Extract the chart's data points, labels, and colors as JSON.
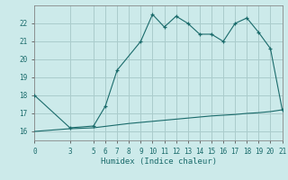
{
  "title": "",
  "xlabel": "Humidex (Indice chaleur)",
  "bg_color": "#cceaea",
  "grid_color": "#aacccc",
  "line_color": "#1a6b6b",
  "xlim": [
    0,
    21
  ],
  "ylim": [
    15.5,
    23.0
  ],
  "xticks": [
    0,
    3,
    5,
    6,
    7,
    8,
    9,
    10,
    11,
    12,
    13,
    14,
    15,
    16,
    17,
    18,
    19,
    20,
    21
  ],
  "yticks": [
    16,
    17,
    18,
    19,
    20,
    21,
    22
  ],
  "curve1_x": [
    0,
    3,
    5,
    6,
    7,
    9,
    10,
    11,
    12,
    13,
    14,
    15,
    16,
    17,
    18,
    19,
    20,
    21
  ],
  "curve1_y": [
    18.0,
    16.2,
    16.3,
    17.4,
    19.4,
    21.0,
    22.5,
    21.8,
    22.4,
    22.0,
    21.4,
    21.4,
    21.0,
    22.0,
    22.3,
    21.5,
    20.6,
    17.2
  ],
  "curve2_x": [
    0,
    3,
    5,
    6,
    7,
    8,
    9,
    10,
    11,
    12,
    13,
    14,
    15,
    16,
    17,
    18,
    19,
    20,
    21
  ],
  "curve2_y": [
    16.0,
    16.15,
    16.2,
    16.28,
    16.36,
    16.44,
    16.5,
    16.56,
    16.62,
    16.68,
    16.74,
    16.8,
    16.86,
    16.9,
    16.94,
    17.0,
    17.04,
    17.1,
    17.2
  ]
}
